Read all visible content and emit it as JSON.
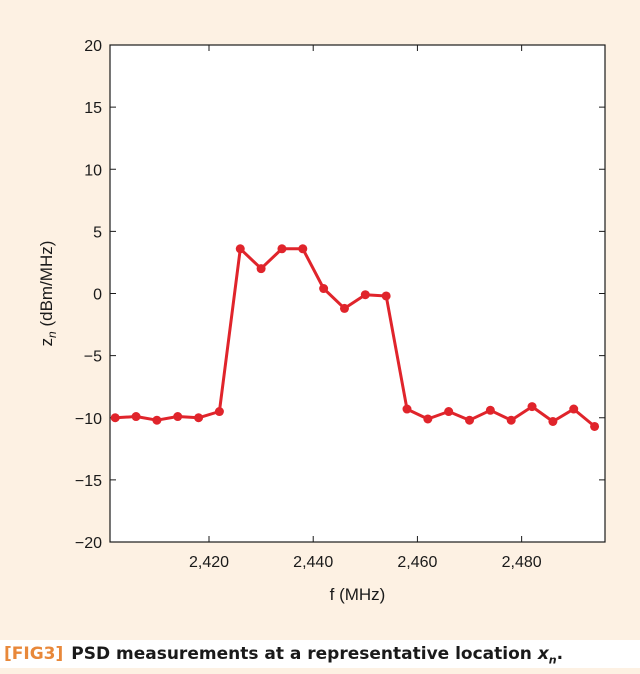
{
  "chart_data": {
    "type": "line",
    "title": "",
    "xlabel": "f (MHz)",
    "ylabel_main": "z",
    "ylabel_sub": "n",
    "ylabel_rest": " (dBm/MHz)",
    "xlim": [
      2401,
      2496
    ],
    "ylim": [
      -20,
      20
    ],
    "xticks": [
      2420,
      2440,
      2460,
      2480
    ],
    "xtick_labels": [
      "2,420",
      "2,440",
      "2,460",
      "2,480"
    ],
    "yticks": [
      20,
      15,
      10,
      5,
      0,
      -5,
      -10,
      -15,
      -20
    ],
    "ytick_labels": [
      "20",
      "15",
      "10",
      "5",
      "0",
      "−5",
      "−10",
      "−15",
      "−20"
    ],
    "series": [
      {
        "color": "#e0242b",
        "x": [
          2402,
          2406,
          2410,
          2414,
          2418,
          2422,
          2426,
          2430,
          2434,
          2438,
          2442,
          2446,
          2450,
          2454,
          2458,
          2462,
          2466,
          2470,
          2474,
          2478,
          2482,
          2486,
          2490,
          2494
        ],
        "y": [
          -10.0,
          -9.9,
          -10.2,
          -9.9,
          -10.0,
          -9.5,
          3.6,
          2.0,
          3.6,
          3.6,
          0.4,
          -1.2,
          -0.1,
          -0.2,
          -9.3,
          -10.1,
          -9.5,
          -10.2,
          -9.4,
          -10.2,
          -9.1,
          -10.3,
          -9.3,
          -10.7
        ]
      }
    ],
    "grid": false
  },
  "caption": {
    "fig_label": "[FIG3]",
    "text_main": "PSD measurements at a representative location ",
    "text_var": "x",
    "text_sub": "n",
    "text_end": "."
  },
  "colors": {
    "background": "#fdf1e3",
    "accent": "#e8883a",
    "series": "#e0242b"
  }
}
